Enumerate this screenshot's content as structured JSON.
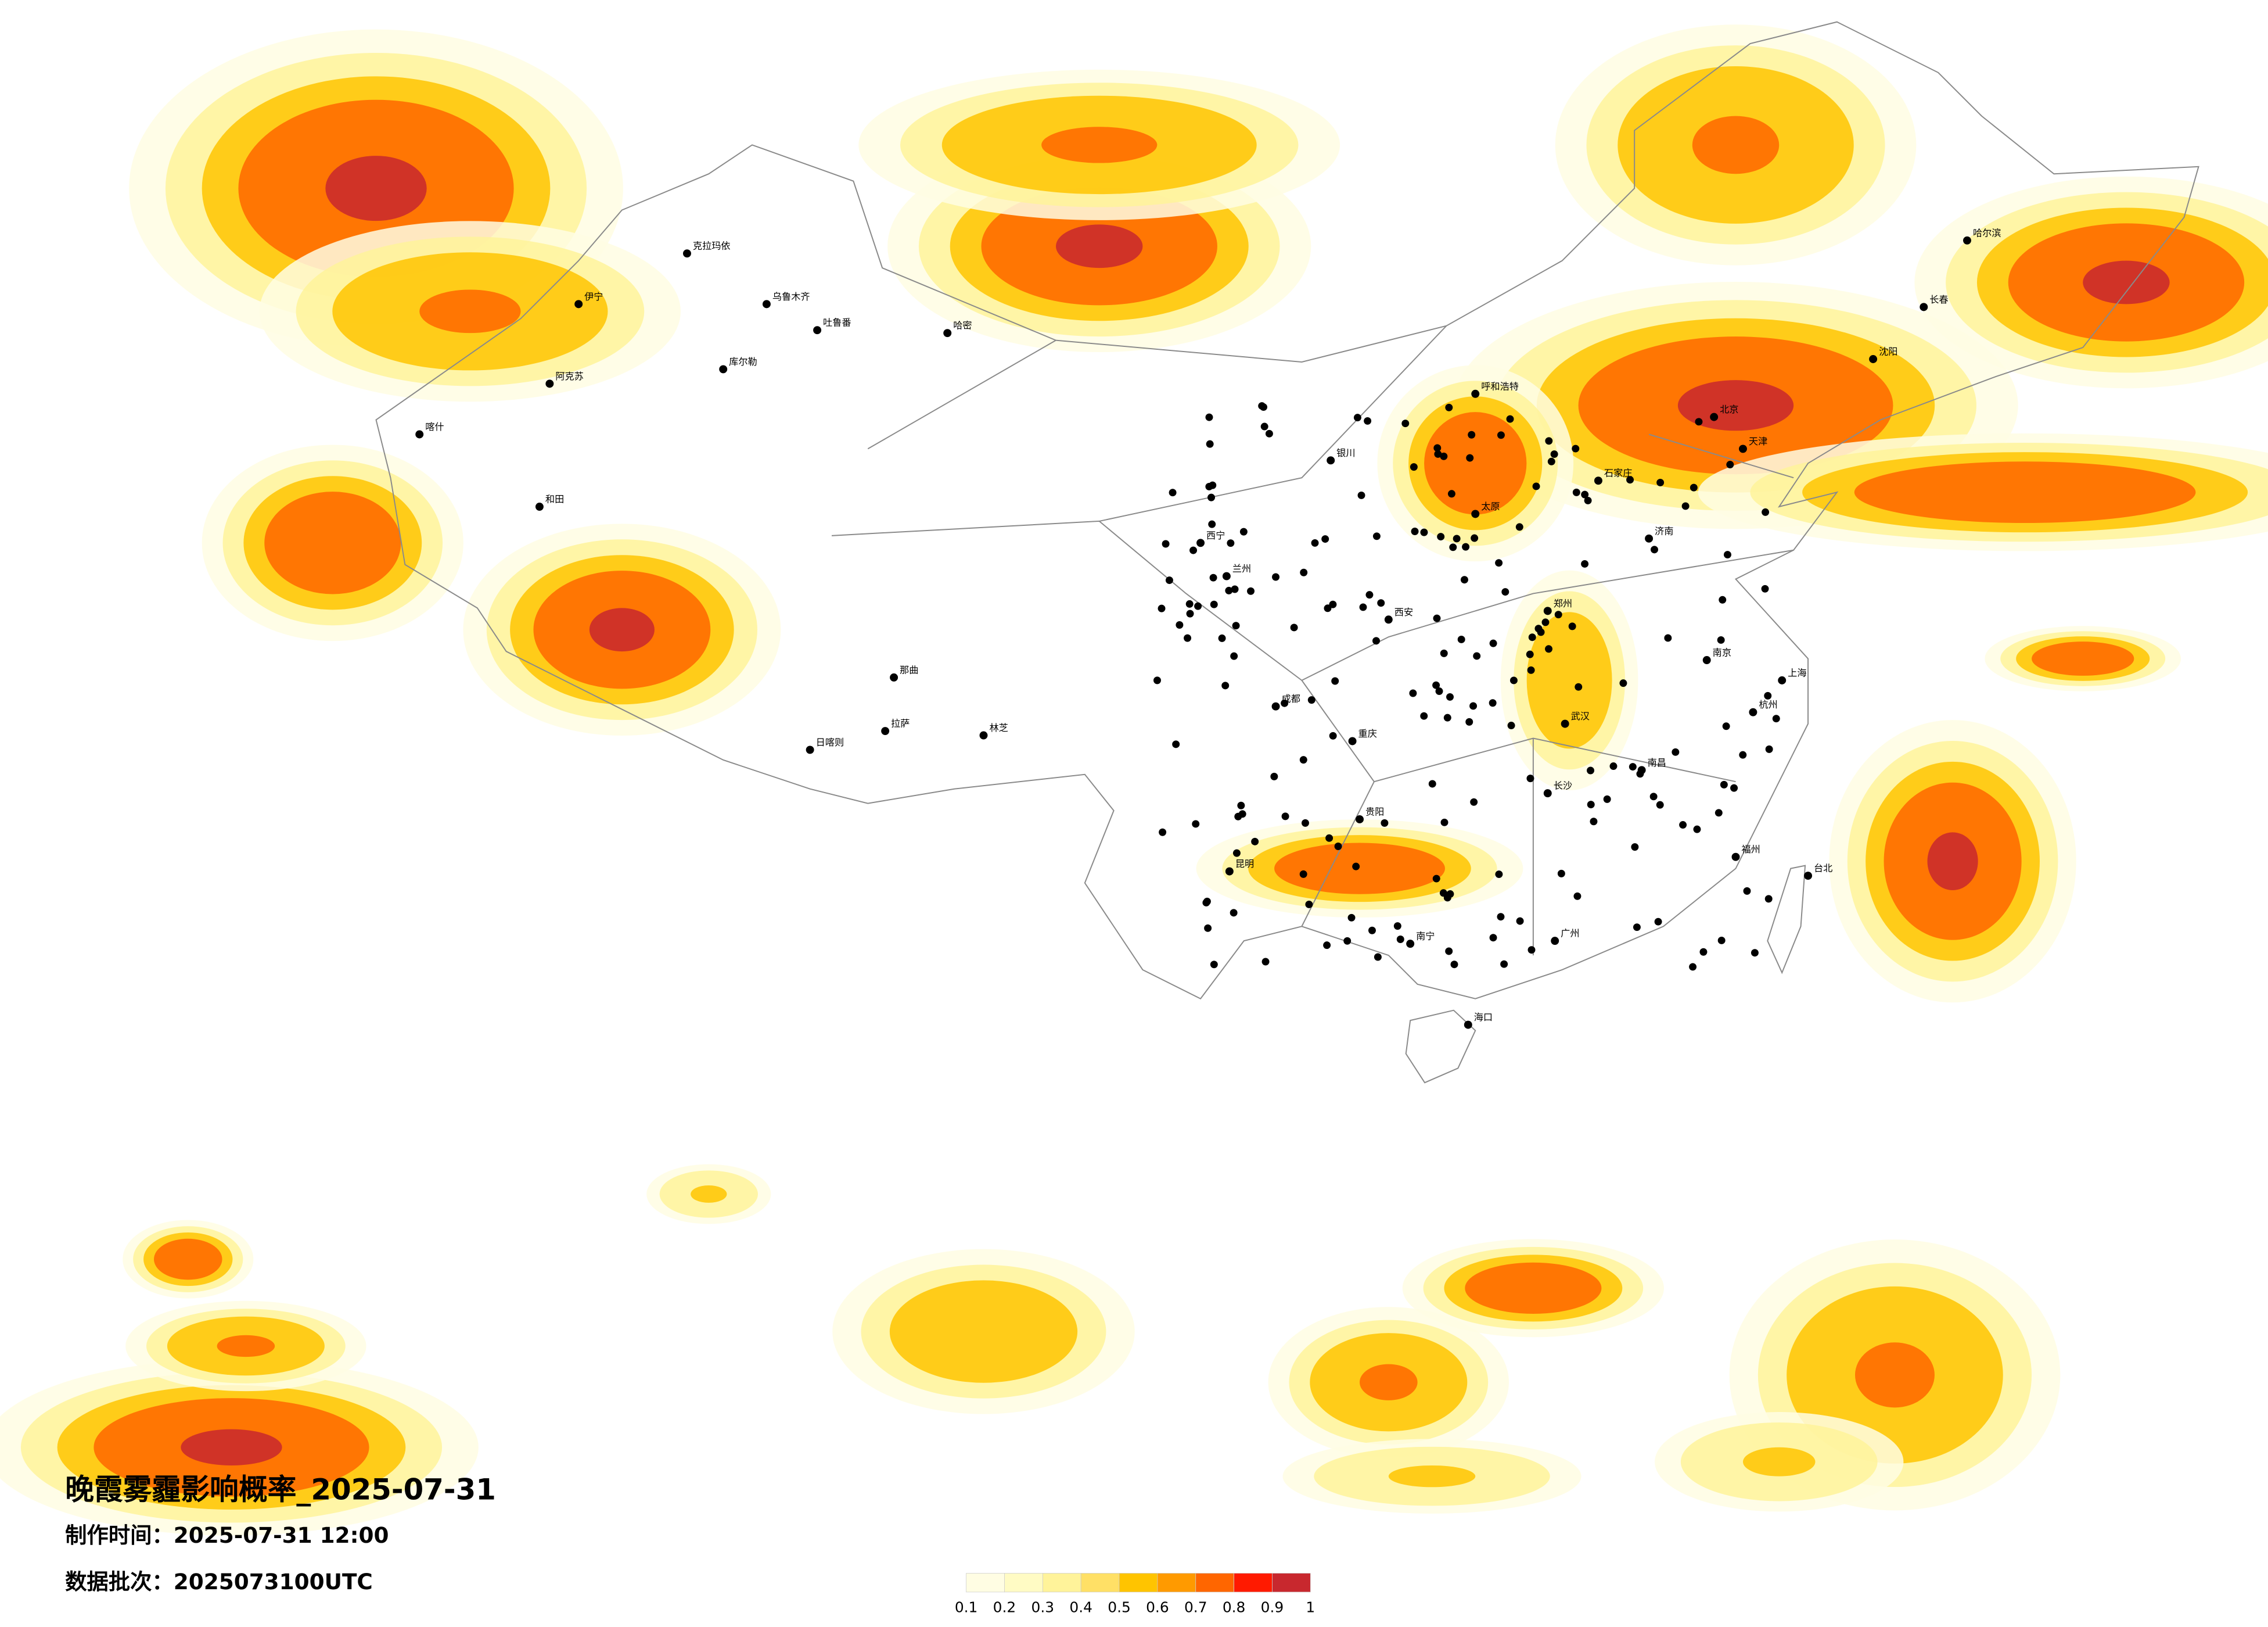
{
  "title": "晚霞雾霾影响概率_2025-07-31",
  "production_time": "制作时间：2025-07-31 12:00",
  "data_batch": "数据批次：2025073100UTC",
  "legend": {
    "colors": [
      "#fffde3",
      "#fffbc4",
      "#fff39a",
      "#ffe066",
      "#ffc400",
      "#ff9a00",
      "#ff6600",
      "#ff1a00",
      "#c8282e"
    ],
    "ticks": [
      0.1,
      0.2,
      0.3,
      0.4,
      0.5,
      0.6,
      0.7,
      0.8,
      0.9,
      1
    ]
  },
  "cities": [
    "克拉玛依",
    "乌鲁木齐",
    "吐鲁番",
    "哈密",
    "伊宁",
    "阿克苏",
    "喀什",
    "和田",
    "库尔勒",
    "拉萨",
    "日喀则",
    "林芝",
    "那曲",
    "西宁",
    "兰州",
    "银川",
    "呼和浩特",
    "北京",
    "天津",
    "石家庄",
    "太原",
    "济南",
    "郑州",
    "西安",
    "成都",
    "重庆",
    "武汉",
    "长沙",
    "南昌",
    "南京",
    "杭州",
    "上海",
    "福州",
    "台北",
    "广州",
    "南宁",
    "贵阳",
    "昆明",
    "海口",
    "沈阳",
    "长春",
    "哈尔滨"
  ]
}
